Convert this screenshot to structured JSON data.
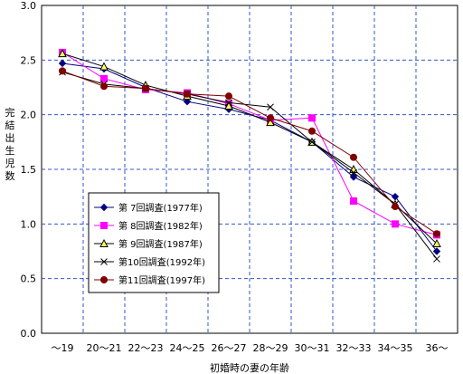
{
  "chart_data": {
    "type": "line",
    "xlabel": "初婚時の妻の年齢",
    "ylabel": "完結出生児数",
    "ylim": [
      0.0,
      3.0
    ],
    "yticks": [
      "0.0",
      "0.5",
      "1.0",
      "1.5",
      "2.0",
      "2.5",
      "3.0"
    ],
    "categories": [
      "～19",
      "20～21",
      "22～23",
      "24～25",
      "26～27",
      "28～29",
      "30～31",
      "32～33",
      "34～35",
      "36～"
    ],
    "grid": true,
    "legend_position": "bottom-left",
    "series": [
      {
        "name": "第 7回調査(1977年)",
        "color": "#000080",
        "marker": "diamond",
        "values": [
          2.47,
          2.42,
          2.25,
          2.12,
          2.05,
          1.95,
          1.75,
          1.43,
          1.25,
          0.75
        ]
      },
      {
        "name": "第 8回調査(1982年)",
        "color": "#ff00ff",
        "marker": "square",
        "values": [
          2.57,
          2.33,
          2.23,
          2.2,
          2.1,
          1.95,
          1.97,
          1.21,
          1.0,
          0.9
        ]
      },
      {
        "name": "第 9回調査(1987年)",
        "color": "#000000",
        "marker": "triangle",
        "values": [
          2.56,
          2.44,
          2.27,
          2.17,
          2.08,
          1.93,
          1.75,
          1.5,
          1.18,
          0.82
        ]
      },
      {
        "name": "第10回調査(1992年)",
        "color": "#000000",
        "marker": "x",
        "values": [
          2.39,
          2.28,
          2.24,
          2.19,
          2.11,
          2.07,
          1.75,
          1.47,
          1.18,
          0.68
        ]
      },
      {
        "name": "第11回調査(1997年)",
        "color": "#800000",
        "marker": "circle",
        "values": [
          2.4,
          2.26,
          2.24,
          2.19,
          2.17,
          1.97,
          1.85,
          1.61,
          1.16,
          0.91
        ]
      }
    ]
  }
}
